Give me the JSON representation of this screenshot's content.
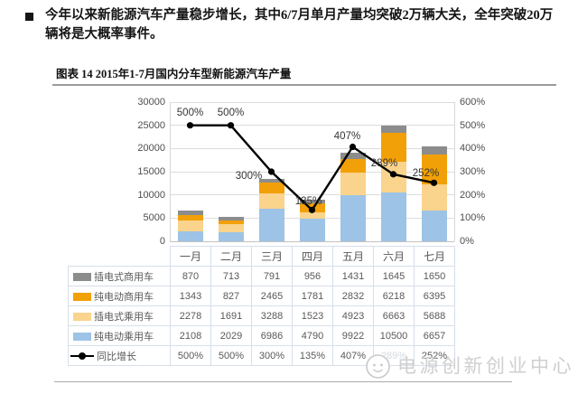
{
  "intro": {
    "text": "今年以来新能源汽车产量稳步增长，其中6/7月单月产量均突破2万辆大关，全年突破20万辆将是大概率事件。"
  },
  "watermark": {
    "text": "电源创新创业中心",
    "logo": "smiley-face"
  },
  "chart_data": {
    "type": "bar",
    "subtype": "stacked-column-with-line",
    "title": "图表 14 2015年1-7月国内分车型新能源汽车产量",
    "categories": [
      "一月",
      "二月",
      "三月",
      "四月",
      "五月",
      "六月",
      "七月"
    ],
    "series": [
      {
        "name": "插电式商用车",
        "kind": "bar",
        "color": "#8C8C8C",
        "values": [
          870,
          713,
          791,
          956,
          1431,
          1645,
          1650
        ]
      },
      {
        "name": "纯电动商用车",
        "kind": "bar",
        "color": "#F2A007",
        "values": [
          1343,
          827,
          2465,
          1781,
          2832,
          6218,
          6395
        ]
      },
      {
        "name": "插电式乘用车",
        "kind": "bar",
        "color": "#FAD38D",
        "values": [
          2278,
          1691,
          3288,
          1523,
          4923,
          6663,
          5688
        ]
      },
      {
        "name": "纯电动乘用车",
        "kind": "bar",
        "color": "#9DC3E6",
        "values": [
          2108,
          2029,
          6986,
          4790,
          9922,
          10500,
          6657
        ]
      },
      {
        "name": "同比增长",
        "kind": "line",
        "color": "#000000",
        "values_pct": [
          500,
          500,
          300,
          135,
          407,
          289,
          252
        ],
        "labels": [
          "500%",
          "500%",
          "300%",
          "135%",
          "407%",
          "289%",
          "252%"
        ]
      }
    ],
    "left_axis": {
      "min": 0,
      "max": 30000,
      "step": 5000,
      "ticks": [
        "0",
        "5000",
        "10000",
        "15000",
        "20000",
        "25000",
        "30000"
      ]
    },
    "right_axis": {
      "min": 0,
      "max": 600,
      "step": 100,
      "ticks": [
        "0%",
        "100%",
        "200%",
        "300%",
        "400%",
        "500%",
        "600%"
      ]
    },
    "gridlines": true,
    "legend_position": "data-table-left",
    "data_table_attached": true
  }
}
